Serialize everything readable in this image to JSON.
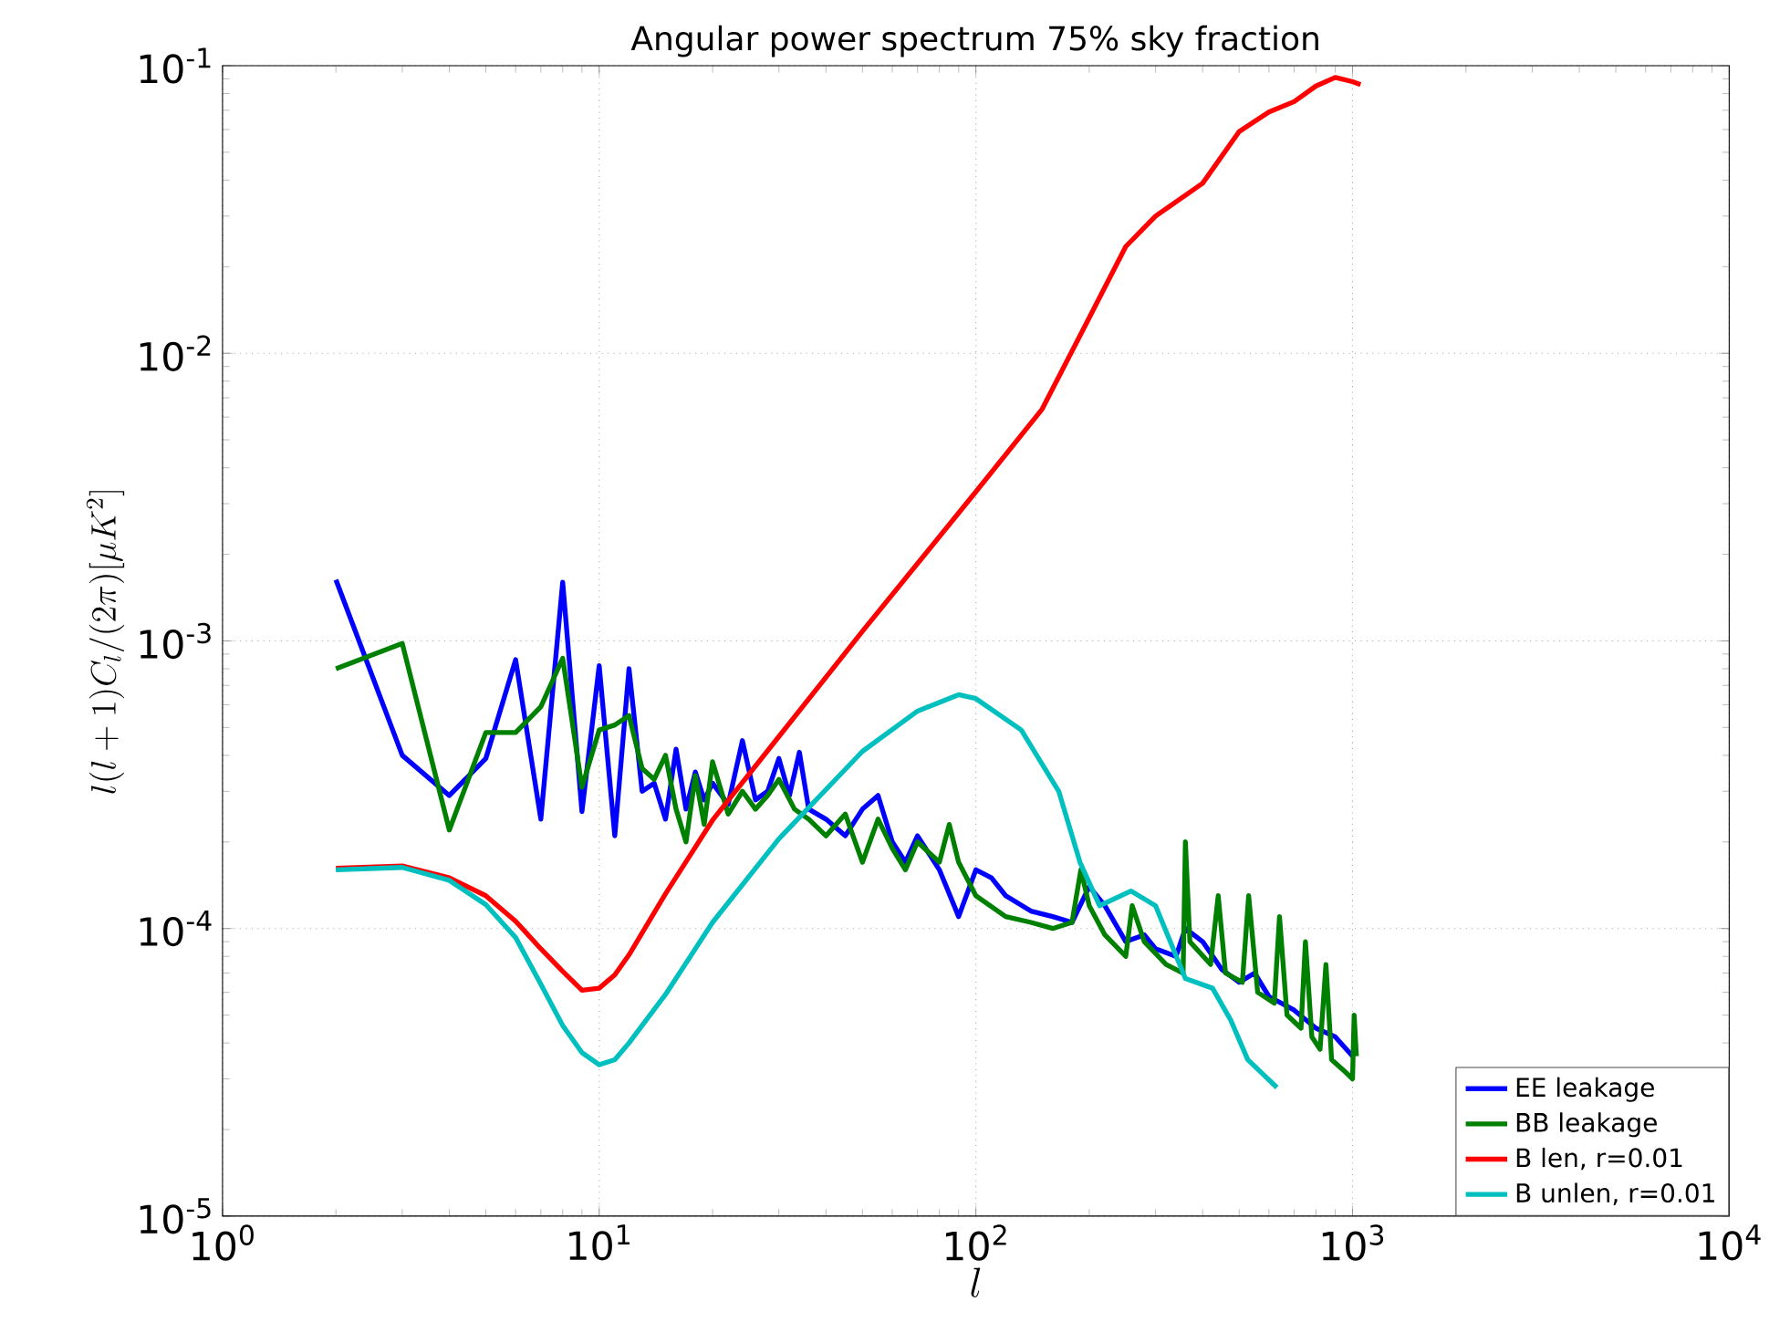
{
  "chart_data": {
    "type": "line",
    "title": "Angular power spectrum 75% sky fraction",
    "xlabel": "l",
    "ylabel": "l(l+1)C_l/(2\\pi)[\\mu K^2]",
    "log": "xy",
    "grid": true,
    "legend": "bottom right",
    "line_style": "solid",
    "marker": "none",
    "xlim": [
      1,
      10000
    ],
    "ylim": [
      1e-05,
      0.1
    ],
    "xticks": [
      {
        "value": 1,
        "label": "10$^{0}$"
      },
      {
        "value": 10,
        "label": "10$^{1}$"
      },
      {
        "value": 100,
        "label": "10$^{2}$"
      },
      {
        "value": 1000,
        "label": "10$^{3}$"
      },
      {
        "value": 10000,
        "label": "10$^{4}$"
      }
    ],
    "yticks": [
      {
        "value": 1e-05,
        "label": "10$^{-5}$"
      },
      {
        "value": 0.0001,
        "label": "10$^{-4}$"
      },
      {
        "value": 0.001,
        "label": "10$^{-3}$"
      },
      {
        "value": 0.01,
        "label": "10$^{-2}$"
      },
      {
        "value": 0.1,
        "label": "10$^{-1}$"
      }
    ],
    "series": [
      {
        "name": "EE leakage",
        "color": "#0000ff",
        "x": [
          2,
          3,
          4,
          5,
          6,
          7,
          8,
          9,
          10,
          11,
          12,
          13,
          14,
          15,
          16,
          17,
          18,
          19,
          20,
          22,
          24,
          26,
          28,
          30,
          32,
          34,
          36,
          40,
          45,
          50,
          55,
          60,
          65,
          70,
          80,
          90,
          100,
          110,
          120,
          140,
          160,
          180,
          200,
          220,
          250,
          280,
          300,
          340,
          360,
          400,
          450,
          500,
          550,
          600,
          700,
          800,
          900,
          1000,
          1024
        ],
        "values": [
          0.00163,
          0.0004,
          0.00029,
          0.00039,
          0.00086,
          0.00024,
          0.0016,
          0.000255,
          0.00082,
          0.00021,
          0.0008,
          0.0003,
          0.00032,
          0.00024,
          0.00042,
          0.00026,
          0.00035,
          0.00028,
          0.00032,
          0.00027,
          0.00045,
          0.00028,
          0.0003,
          0.00039,
          0.00029,
          0.00041,
          0.00026,
          0.00024,
          0.00021,
          0.00026,
          0.00029,
          0.0002,
          0.00017,
          0.00021,
          0.00016,
          0.00011,
          0.00016,
          0.00015,
          0.00013,
          0.000115,
          0.00011,
          0.000105,
          0.00014,
          0.00012,
          9e-05,
          9.5e-05,
          8.5e-05,
          8e-05,
          0.0001,
          9e-05,
          7.2e-05,
          6.5e-05,
          7e-05,
          5.8e-05,
          5.2e-05,
          4.5e-05,
          4.2e-05,
          3.6e-05,
          3.8e-05
        ]
      },
      {
        "name": "BB leakage",
        "color": "#008000",
        "x": [
          2,
          3,
          4,
          5,
          6,
          7,
          8,
          9,
          10,
          11,
          12,
          13,
          14,
          15,
          16,
          17,
          18,
          19,
          20,
          22,
          24,
          26,
          28,
          30,
          33,
          36,
          40,
          45,
          50,
          55,
          60,
          65,
          70,
          80,
          85,
          90,
          100,
          120,
          140,
          160,
          180,
          190,
          200,
          220,
          250,
          260,
          280,
          320,
          355,
          360,
          370,
          420,
          440,
          460,
          510,
          530,
          560,
          620,
          640,
          670,
          730,
          750,
          780,
          820,
          850,
          880,
          950,
          1000,
          1010,
          1024
        ],
        "values": [
          0.0008,
          0.00098,
          0.00022,
          0.00048,
          0.00048,
          0.00059,
          0.00087,
          0.00031,
          0.00049,
          0.00051,
          0.00055,
          0.00036,
          0.00033,
          0.0004,
          0.00026,
          0.0002,
          0.00034,
          0.00023,
          0.00038,
          0.00025,
          0.0003,
          0.00026,
          0.00029,
          0.00033,
          0.00026,
          0.00024,
          0.00021,
          0.00025,
          0.00017,
          0.00024,
          0.00019,
          0.00016,
          0.0002,
          0.00017,
          0.00023,
          0.00017,
          0.00013,
          0.00011,
          0.000105,
          0.0001,
          0.000105,
          0.00016,
          0.00012,
          9.5e-05,
          8e-05,
          0.00012,
          9e-05,
          7.5e-05,
          7e-05,
          0.0002,
          9e-05,
          7.5e-05,
          0.00013,
          7e-05,
          6.5e-05,
          0.00013,
          6e-05,
          5.5e-05,
          0.00011,
          5e-05,
          4.5e-05,
          9e-05,
          4.2e-05,
          3.8e-05,
          7.5e-05,
          3.5e-05,
          3.2e-05,
          3e-05,
          5e-05,
          3.6e-05
        ]
      },
      {
        "name": "B len, r=0.01",
        "color": "#ff0000",
        "x": [
          2,
          3,
          4,
          5,
          6,
          7,
          8,
          9,
          10,
          11,
          12,
          15,
          20,
          30,
          50,
          100,
          150,
          200,
          250,
          300,
          400,
          500,
          600,
          700,
          800,
          900,
          1000,
          1050
        ],
        "values": [
          0.000162,
          0.000165,
          0.00015,
          0.00013,
          0.000106,
          8.5e-05,
          7.1e-05,
          6.1e-05,
          6.2e-05,
          6.9e-05,
          8.1e-05,
          0.000132,
          0.000238,
          0.000465,
          0.00108,
          0.0033,
          0.0064,
          0.0133,
          0.0235,
          0.03,
          0.039,
          0.059,
          0.069,
          0.075,
          0.085,
          0.091,
          0.088,
          0.086
        ]
      },
      {
        "name": "B unlen, r=0.01",
        "color": "#00bfbf",
        "x": [
          2,
          3,
          4,
          5,
          6,
          7,
          8,
          9,
          10,
          11,
          12,
          15,
          20,
          30,
          50,
          70,
          90,
          100,
          132,
          166,
          189,
          213,
          258,
          300,
          360,
          425,
          475,
          527,
          630
        ],
        "values": [
          0.00016,
          0.000163,
          0.000147,
          0.000121,
          9.3e-05,
          6.4e-05,
          4.6e-05,
          3.7e-05,
          3.36e-05,
          3.5e-05,
          4e-05,
          5.9e-05,
          0.000105,
          0.000205,
          0.000413,
          0.00057,
          0.00065,
          0.00063,
          0.00049,
          0.0003,
          0.00017,
          0.00012,
          0.000135,
          0.00012,
          6.7e-05,
          6.2e-05,
          4.8e-05,
          3.5e-05,
          2.8e-05
        ]
      }
    ]
  }
}
